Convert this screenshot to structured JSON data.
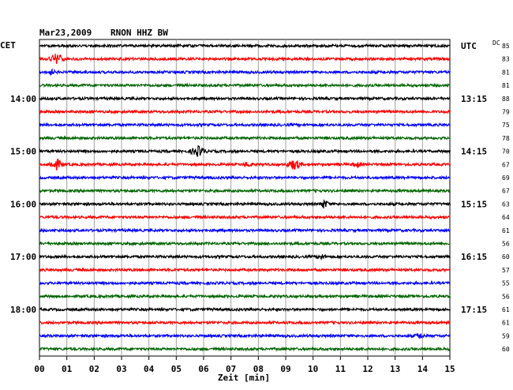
{
  "header": {
    "date": "Mar23,2009",
    "station": "RNON HHZ BW",
    "left_zone": "CET",
    "right_zone": "UTC",
    "dc_label": "DC"
  },
  "chart_data": {
    "type": "line",
    "title": "Mar23,2009   RNON HHZ BW",
    "xlabel": "Zeit [min]",
    "x_ticks": [
      "00",
      "01",
      "02",
      "03",
      "04",
      "05",
      "06",
      "07",
      "08",
      "09",
      "10",
      "11",
      "12",
      "13",
      "14",
      "15"
    ],
    "xlim": [
      0,
      15
    ],
    "grid": true,
    "trace_colors": [
      "#000000",
      "#ff0000",
      "#0000ff",
      "#006400"
    ],
    "left_time_labels": [
      {
        "trace": 4,
        "label": "14:00"
      },
      {
        "trace": 8,
        "label": "15:00"
      },
      {
        "trace": 12,
        "label": "16:00"
      },
      {
        "trace": 16,
        "label": "17:00"
      },
      {
        "trace": 20,
        "label": "18:00"
      }
    ],
    "right_time_labels": [
      {
        "trace": 0,
        "label": "UTC"
      },
      {
        "trace": 4,
        "label": "13:15"
      },
      {
        "trace": 8,
        "label": "14:15"
      },
      {
        "trace": 12,
        "label": "15:15"
      },
      {
        "trace": 16,
        "label": "16:15"
      },
      {
        "trace": 20,
        "label": "17:15"
      }
    ],
    "dc_values": [
      "85",
      "83",
      "81",
      "81",
      "88",
      "79",
      "75",
      "78",
      "70",
      "67",
      "69",
      "67",
      "63",
      "64",
      "61",
      "56",
      "60",
      "57",
      "55",
      "56",
      "61",
      "61",
      "59",
      "60"
    ],
    "events": [
      {
        "trace": 1,
        "minute": 0.6,
        "strength": "strong"
      },
      {
        "trace": 2,
        "minute": 0.4,
        "strength": "weak"
      },
      {
        "trace": 8,
        "minute": 5.8,
        "strength": "strong"
      },
      {
        "trace": 9,
        "minute": 0.6,
        "strength": "strong"
      },
      {
        "trace": 9,
        "minute": 9.3,
        "strength": "strong"
      },
      {
        "trace": 9,
        "minute": 7.6,
        "strength": "weak"
      },
      {
        "trace": 9,
        "minute": 11.6,
        "strength": "weak"
      },
      {
        "trace": 12,
        "minute": 10.4,
        "strength": "medium"
      },
      {
        "trace": 16,
        "minute": 10.3,
        "strength": "weak"
      },
      {
        "trace": 22,
        "minute": 13.9,
        "strength": "weak"
      }
    ]
  }
}
